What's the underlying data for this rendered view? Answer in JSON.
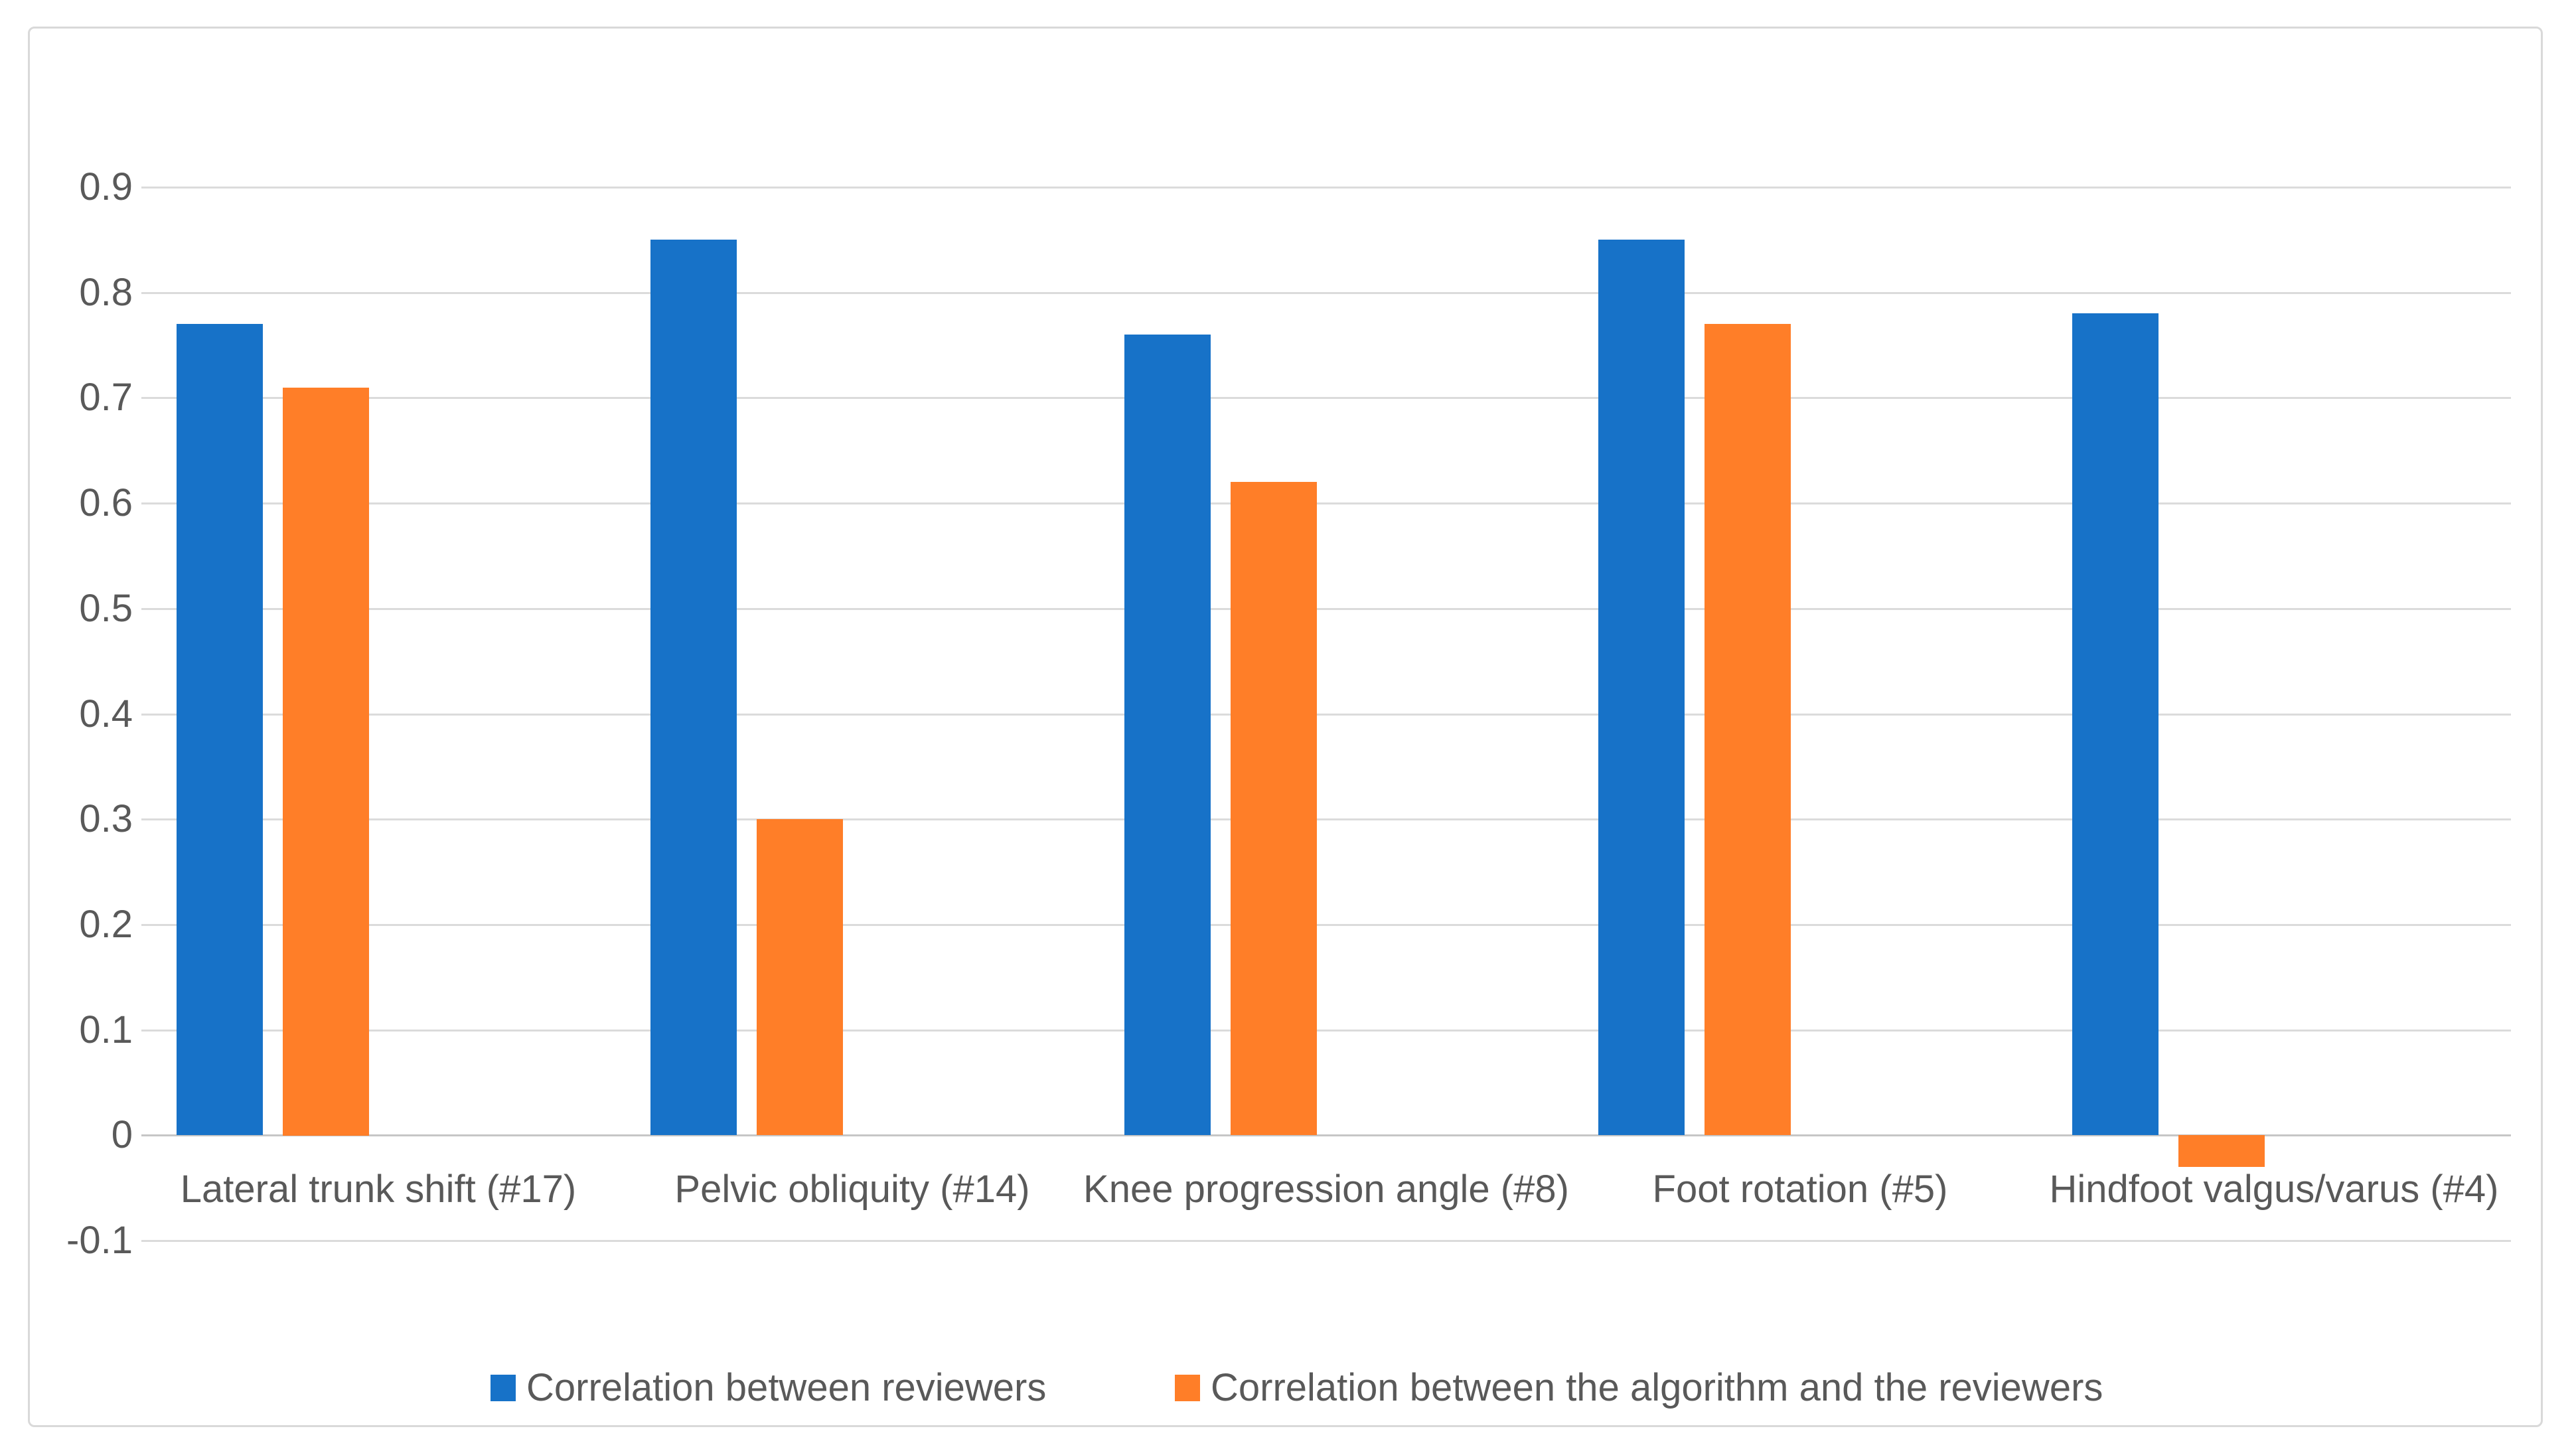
{
  "figure": {
    "background": "#FFFFFF",
    "border_color": "#D9D9D9",
    "gridline_color": "#DBDBDB",
    "zero_line_color": "#C6C6C6",
    "axis_text_color": "#595959"
  },
  "chart_data": {
    "type": "bar",
    "title": "",
    "categories": [
      "Lateral trunk shift (#17)",
      "Pelvic obliquity (#14)",
      "Knee progression angle (#8)",
      "Foot rotation (#5)",
      "Hindfoot valgus/varus (#4)"
    ],
    "series": [
      {
        "name": "Correlation between reviewers",
        "color": "#1772C8",
        "values": [
          0.77,
          0.85,
          0.76,
          0.85,
          0.78
        ]
      },
      {
        "name": "Correlation between the algorithm and the reviewers",
        "color": "#FF7E28",
        "values": [
          0.71,
          0.3,
          0.62,
          0.77,
          -0.03
        ]
      }
    ],
    "y_axis": {
      "min": -0.1,
      "max": 0.9,
      "step": 0.1,
      "tick_labels": [
        "0.9",
        "0.8",
        "0.7",
        "0.6",
        "0.5",
        "0.4",
        "0.3",
        "0.2",
        "0.1",
        "0",
        "-0.1"
      ]
    },
    "grid": true,
    "legend_position": "bottom"
  }
}
